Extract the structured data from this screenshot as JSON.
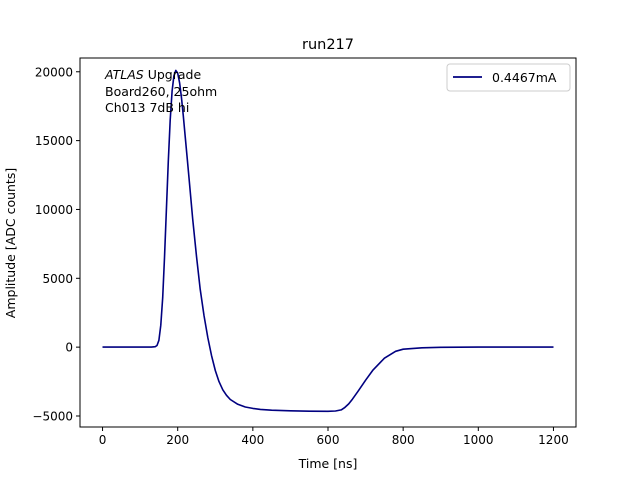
{
  "chart_data": {
    "type": "line",
    "title": "run217",
    "xlabel": "Time [ns]",
    "ylabel": "Amplitude [ADC counts]",
    "xlim": [
      -60,
      1260
    ],
    "ylim": [
      -5800,
      21000
    ],
    "xticks": [
      0,
      200,
      400,
      600,
      800,
      1000,
      1200
    ],
    "yticks": [
      -5000,
      0,
      5000,
      10000,
      15000,
      20000
    ],
    "grid": false,
    "legend_position": "top-right",
    "annotation": {
      "italic": "ATLAS",
      "line1_rest": " Upgrade",
      "line2": "Board260, 25ohm",
      "line3": "Ch013 7dB hi"
    },
    "series": [
      {
        "name": "0.4467mA",
        "color": "#000080",
        "x": [
          0,
          50,
          100,
          130,
          140,
          145,
          150,
          155,
          160,
          165,
          170,
          175,
          180,
          185,
          190,
          195,
          200,
          205,
          210,
          215,
          220,
          225,
          230,
          240,
          250,
          260,
          270,
          280,
          290,
          300,
          310,
          320,
          330,
          340,
          360,
          380,
          400,
          420,
          450,
          500,
          550,
          600,
          620,
          635,
          645,
          655,
          665,
          680,
          700,
          720,
          750,
          780,
          800,
          850,
          900,
          1000,
          1100,
          1200
        ],
        "y": [
          0,
          0,
          0,
          0,
          30,
          120,
          500,
          1600,
          3600,
          6500,
          10000,
          13500,
          16500,
          18600,
          19700,
          20100,
          19900,
          19200,
          18100,
          16800,
          15300,
          13800,
          12300,
          9300,
          6600,
          4200,
          2300,
          700,
          -600,
          -1700,
          -2500,
          -3100,
          -3500,
          -3800,
          -4150,
          -4350,
          -4450,
          -4520,
          -4580,
          -4620,
          -4650,
          -4660,
          -4640,
          -4560,
          -4380,
          -4120,
          -3780,
          -3200,
          -2400,
          -1650,
          -800,
          -300,
          -150,
          -50,
          -15,
          0,
          0,
          0
        ]
      }
    ]
  }
}
